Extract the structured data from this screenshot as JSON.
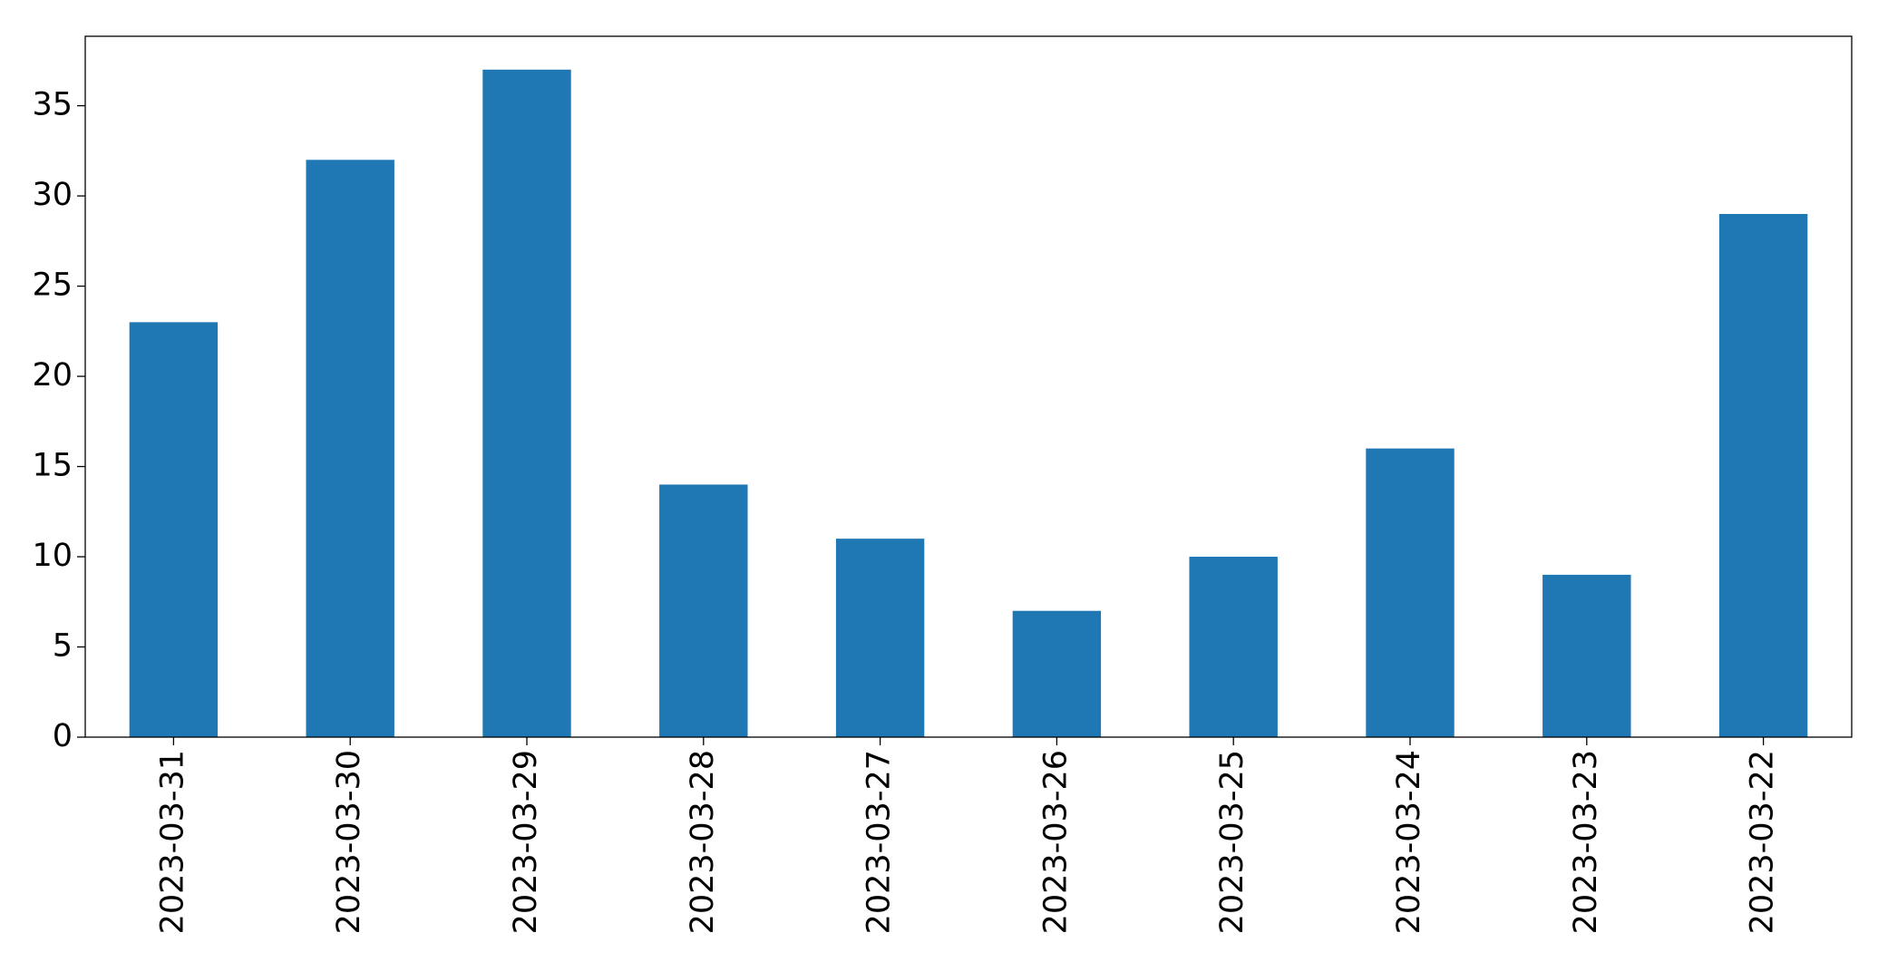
{
  "chart_data": {
    "type": "bar",
    "categories": [
      "2023-03-31",
      "2023-03-30",
      "2023-03-29",
      "2023-03-28",
      "2023-03-27",
      "2023-03-26",
      "2023-03-25",
      "2023-03-24",
      "2023-03-23",
      "2023-03-22"
    ],
    "values": [
      23,
      32,
      37,
      14,
      11,
      7,
      10,
      16,
      9,
      29
    ],
    "color": "#1f77b4",
    "ylim": [
      0,
      38.85
    ],
    "yticks": [
      0,
      5,
      10,
      15,
      20,
      25,
      30,
      35
    ],
    "grid": false
  }
}
